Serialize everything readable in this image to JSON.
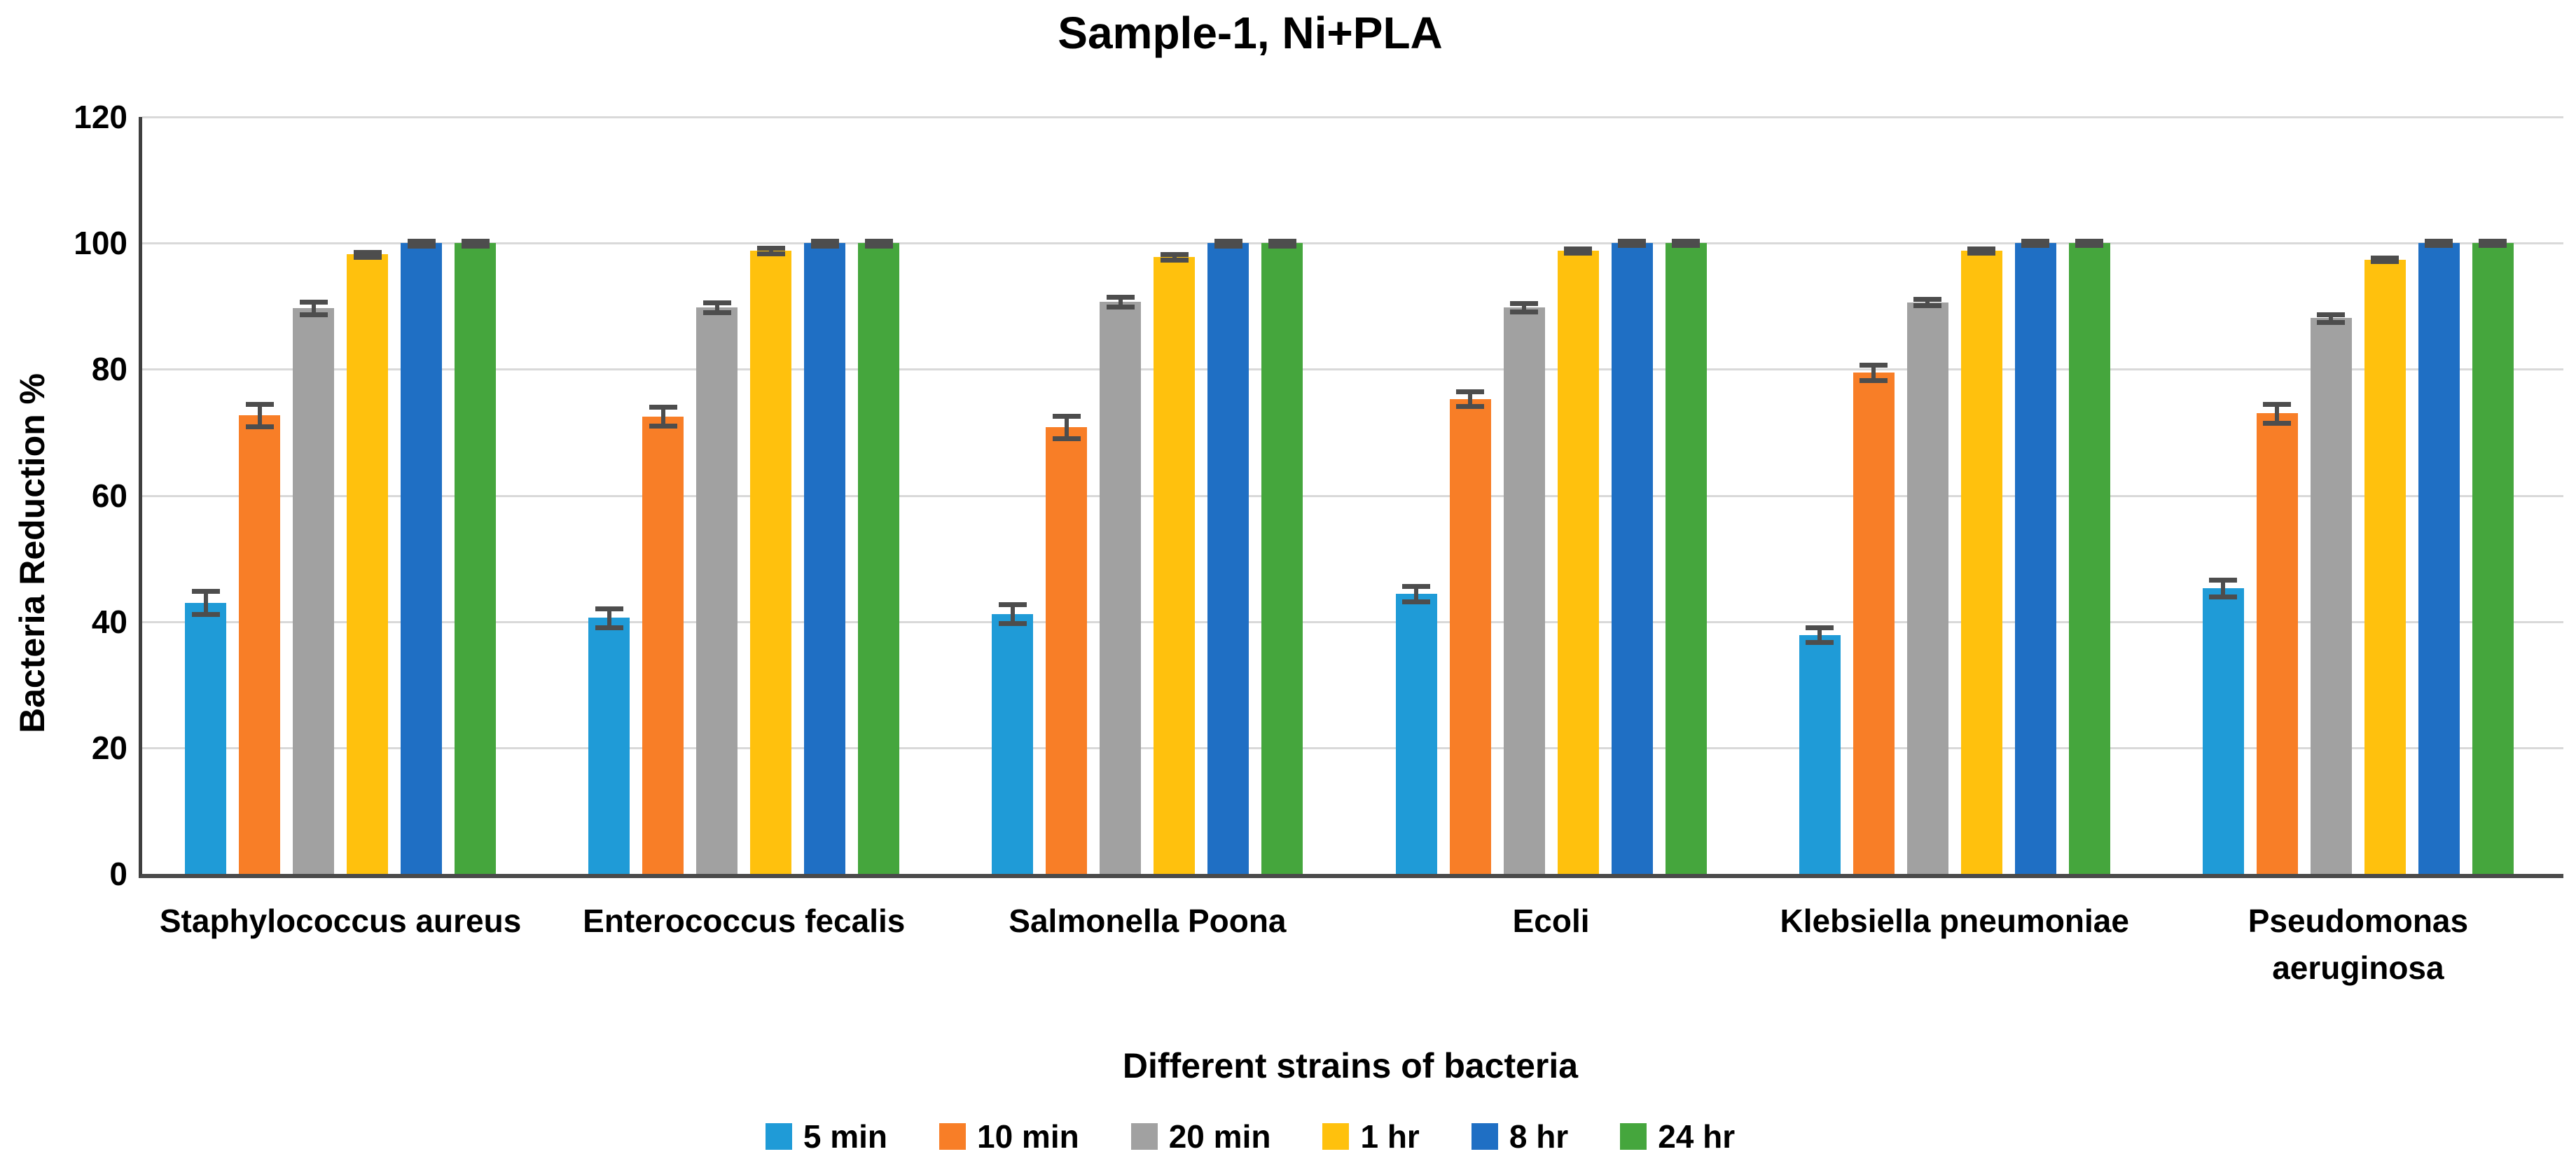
{
  "title": "Sample-1, Ni+PLA",
  "chart_data": {
    "type": "bar",
    "title": "Sample-1, Ni+PLA",
    "xlabel": "Different strains of bacteria",
    "ylabel": "Bacteria Reduction %",
    "ylim": [
      0,
      120
    ],
    "y_ticks": [
      120,
      100,
      80,
      60,
      40,
      20,
      0
    ],
    "grid": true,
    "legend_position": "bottom",
    "categories": [
      "Staphylococcus aureus",
      "Enterococcus fecalis",
      "Salmonella Poona",
      "Ecoli",
      "Klebsiella pneumoniae",
      "Pseudomonas aeruginosa"
    ],
    "series": [
      {
        "name": "5 min",
        "color": "#1F9BD7",
        "values": [
          43.0,
          40.6,
          41.2,
          44.4,
          37.9,
          45.3
        ],
        "errors": [
          1.8,
          1.5,
          1.5,
          1.2,
          1.2,
          1.3
        ]
      },
      {
        "name": "10 min",
        "color": "#F87E27",
        "values": [
          72.7,
          72.5,
          70.8,
          75.3,
          79.5,
          73.0
        ],
        "errors": [
          1.8,
          1.5,
          1.8,
          1.2,
          1.2,
          1.5
        ]
      },
      {
        "name": "20 min",
        "color": "#A1A1A1",
        "values": [
          89.7,
          89.8,
          90.7,
          89.8,
          90.6,
          88.1
        ],
        "errors": [
          1.0,
          0.8,
          0.8,
          0.7,
          0.5,
          0.6
        ]
      },
      {
        "name": "1 hr",
        "color": "#FFC10D",
        "values": [
          98.2,
          98.8,
          97.8,
          98.8,
          98.8,
          97.4
        ],
        "errors": [
          0.4,
          0.4,
          0.4,
          0.3,
          0.3,
          0.3
        ]
      },
      {
        "name": "8 hr",
        "color": "#1F6FC4",
        "values": [
          100.0,
          100.0,
          100.0,
          100.0,
          100.0,
          100.0
        ],
        "errors": [
          0.4,
          0.4,
          0.4,
          0.3,
          0.3,
          0.3
        ]
      },
      {
        "name": "24 hr",
        "color": "#45A63D",
        "values": [
          100.0,
          100.0,
          100.0,
          100.0,
          100.0,
          100.0
        ],
        "errors": [
          0.4,
          0.4,
          0.4,
          0.3,
          0.3,
          0.3
        ]
      }
    ]
  }
}
